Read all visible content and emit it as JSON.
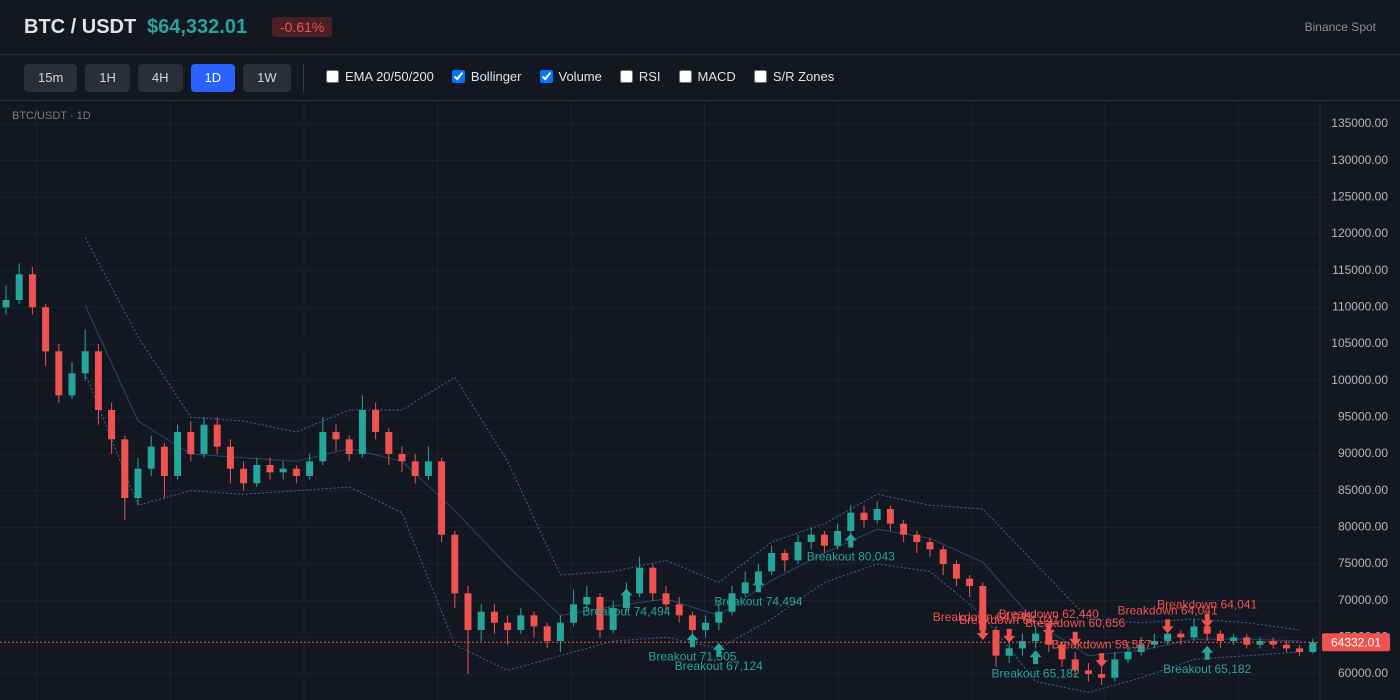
{
  "header": {
    "symbol": "BTC / USDT",
    "price": "$64,332.01",
    "change": "-0.61%",
    "exchange": "Binance Spot"
  },
  "toolbar": {
    "intervals": [
      "15m",
      "1H",
      "4H",
      "1D",
      "1W"
    ],
    "active_interval": 3,
    "indicators": [
      {
        "label": "EMA 20/50/200",
        "checked": false
      },
      {
        "label": "Bollinger",
        "checked": true
      },
      {
        "label": "Volume",
        "checked": true
      },
      {
        "label": "RSI",
        "checked": false
      },
      {
        "label": "MACD",
        "checked": false
      },
      {
        "label": "S/R Zones",
        "checked": false
      }
    ]
  },
  "chart_data": {
    "type": "candlestick",
    "label": "BTC/USDT · 1D",
    "up_color": "#26a69a",
    "down_color": "#ef5350",
    "grid": true,
    "ylim": [
      56460,
      138130
    ],
    "yticks": [
      {
        "value": 60000,
        "label": "60000.00"
      },
      {
        "value": 65000,
        "label": "65000.00"
      },
      {
        "value": 70000,
        "label": "70000.00"
      },
      {
        "value": 75000,
        "label": "75000.00"
      },
      {
        "value": 80000,
        "label": "80000.00"
      },
      {
        "value": 85000,
        "label": "85000.00"
      },
      {
        "value": 90000,
        "label": "90000.00"
      },
      {
        "value": 95000,
        "label": "95000.00"
      },
      {
        "value": 100000,
        "label": "100000.00"
      },
      {
        "value": 105000,
        "label": "105000.00"
      },
      {
        "value": 110000,
        "label": "110000.00"
      },
      {
        "value": 115000,
        "label": "115000.00"
      },
      {
        "value": 120000,
        "label": "120000.00"
      },
      {
        "value": 125000,
        "label": "125000.00"
      },
      {
        "value": 130000,
        "label": "130000.00"
      },
      {
        "value": 135000,
        "label": "135000.00"
      }
    ],
    "last_price": 64332.01,
    "open": [
      110000,
      111000,
      114500,
      110000,
      104000,
      98000,
      101000,
      104000,
      96000,
      92000,
      84000,
      88000,
      91000,
      87000,
      93000,
      90000,
      94000,
      91000,
      88000,
      86000,
      88500,
      87500,
      88000,
      87000,
      89000,
      93000,
      92000,
      90000,
      96000,
      93000,
      90000,
      89000,
      87000,
      89000,
      79000,
      71000,
      66000,
      68500,
      67000,
      66000,
      68000,
      66500,
      64500,
      67000,
      69500,
      70500,
      66000,
      69000,
      71000,
      74500,
      71000,
      69500,
      68000,
      66000,
      67000,
      68500,
      71000,
      72500,
      74000,
      76500,
      75500,
      78000,
      79000,
      77500,
      79500,
      82000,
      81000,
      82500,
      80500,
      79000,
      78000,
      77000,
      75000,
      73000,
      72000,
      66000,
      62500,
      63500,
      64500,
      65500,
      64000,
      62000,
      60500,
      60000,
      59500,
      62000,
      63000,
      64000,
      64500,
      65500,
      65000,
      66500,
      65500,
      64500,
      65000,
      64000,
      64500,
      64000,
      63500,
      63000
    ],
    "high": [
      113000,
      116000,
      115500,
      110500,
      105000,
      102500,
      107000,
      105000,
      97000,
      92500,
      89500,
      92500,
      91500,
      94000,
      94500,
      95000,
      95000,
      92000,
      89000,
      89500,
      89500,
      89000,
      88500,
      90000,
      95000,
      94000,
      92500,
      98000,
      97000,
      93500,
      91000,
      90000,
      91000,
      89500,
      79500,
      72000,
      69500,
      69500,
      68000,
      69000,
      68500,
      67000,
      68000,
      71500,
      72000,
      71000,
      70000,
      72500,
      76000,
      75000,
      72000,
      70500,
      68500,
      68000,
      70000,
      72000,
      74000,
      75000,
      77500,
      77000,
      79000,
      80000,
      79500,
      80500,
      83000,
      83000,
      83500,
      83000,
      81000,
      79500,
      78500,
      77500,
      75500,
      73500,
      72500,
      66500,
      65000,
      65500,
      66500,
      66000,
      64500,
      63000,
      61500,
      61000,
      63000,
      64000,
      65000,
      65500,
      66500,
      66000,
      67500,
      67000,
      66000,
      65500,
      65500,
      65000,
      65000,
      64500,
      64000,
      64800
    ],
    "low": [
      109000,
      110500,
      109000,
      102000,
      97000,
      97500,
      100000,
      94000,
      90000,
      81000,
      83000,
      87000,
      84000,
      86500,
      89000,
      89500,
      90000,
      86000,
      85000,
      85500,
      86500,
      86500,
      86000,
      86500,
      88500,
      90500,
      89000,
      89500,
      92000,
      88500,
      87500,
      86000,
      86500,
      78000,
      69000,
      60000,
      64500,
      65500,
      64000,
      65500,
      65000,
      63500,
      63000,
      66500,
      68500,
      65000,
      65500,
      68500,
      70500,
      70000,
      68500,
      67000,
      64500,
      65000,
      66000,
      68000,
      70500,
      71500,
      73500,
      74000,
      75000,
      77000,
      76500,
      77000,
      79000,
      80000,
      80500,
      79500,
      78000,
      76500,
      76000,
      73500,
      72000,
      70500,
      65000,
      61000,
      61500,
      62500,
      63500,
      63000,
      61000,
      59500,
      59000,
      58500,
      59000,
      61500,
      62500,
      63500,
      64000,
      64000,
      64500,
      64500,
      63500,
      64000,
      63500,
      63500,
      63500,
      63000,
      62500,
      62800
    ],
    "close": [
      111000,
      114500,
      110000,
      104000,
      98000,
      101000,
      104000,
      96000,
      92000,
      84000,
      88000,
      91000,
      87000,
      93000,
      90000,
      94000,
      91000,
      88000,
      86000,
      88500,
      87500,
      88000,
      87000,
      89000,
      93000,
      92000,
      90000,
      96000,
      93000,
      90000,
      89000,
      87000,
      89000,
      79000,
      71000,
      66000,
      68500,
      67000,
      66000,
      68000,
      66500,
      64500,
      67000,
      69500,
      70500,
      66000,
      69000,
      71000,
      74500,
      71000,
      69500,
      68000,
      66000,
      67000,
      68500,
      71000,
      72500,
      74000,
      76500,
      75500,
      78000,
      79000,
      77500,
      79500,
      82000,
      81000,
      82500,
      80500,
      79000,
      78000,
      77000,
      75000,
      73000,
      72000,
      66000,
      62500,
      63500,
      64500,
      65500,
      64000,
      62000,
      60500,
      60000,
      59500,
      62000,
      63000,
      64000,
      64500,
      65500,
      65000,
      66500,
      65500,
      64500,
      65000,
      64000,
      64500,
      64000,
      63500,
      63000,
      64332.01
    ],
    "bollinger": {
      "color": "#3a6ea5",
      "x": [
        6,
        10,
        14,
        18,
        22,
        26,
        30,
        34,
        38,
        42,
        46,
        50,
        54,
        58,
        62,
        66,
        70,
        74,
        78,
        82,
        86,
        90,
        94,
        98
      ],
      "upper": [
        119500,
        106000,
        95000,
        94500,
        93000,
        96000,
        96000,
        100500,
        89000,
        73500,
        74000,
        75500,
        72500,
        78000,
        80500,
        84500,
        83000,
        82500,
        75000,
        67500,
        67000,
        67500,
        67000,
        66000
      ],
      "middle": [
        110250,
        94500,
        90000,
        89500,
        89000,
        90750,
        89000,
        82250,
        74750,
        68000,
        69250,
        70250,
        68000,
        72750,
        76500,
        79750,
        78500,
        75250,
        67000,
        62500,
        63250,
        64750,
        64750,
        64500
      ],
      "lower": [
        101000,
        83000,
        85000,
        84500,
        85000,
        85500,
        82000,
        64000,
        60500,
        62500,
        64500,
        65000,
        63500,
        67500,
        72500,
        75000,
        74000,
        68000,
        59000,
        57500,
        59500,
        62000,
        62500,
        63000
      ]
    },
    "annotations": [
      {
        "text": "Breakout 74,494",
        "index": 47,
        "price": 70700,
        "direction": "up"
      },
      {
        "text": "Breakout 71,505",
        "index": 52,
        "price": 64600,
        "direction": "up"
      },
      {
        "text": "Breakout 67,124",
        "index": 54,
        "price": 63300,
        "direction": "up"
      },
      {
        "text": "Breakout 74,494",
        "index": 57,
        "price": 72100,
        "direction": "up"
      },
      {
        "text": "Breakout 80,043",
        "index": 64,
        "price": 78200,
        "direction": "up"
      },
      {
        "text": "Breakout 65,182",
        "index": 78,
        "price": 62300,
        "direction": "up"
      },
      {
        "text": "Breakout 65,182",
        "index": 91,
        "price": 62900,
        "direction": "up"
      },
      {
        "text": "Breakdown 64,041",
        "index": 74,
        "price": 65600,
        "direction": "down"
      },
      {
        "text": "Breakdown 64,041",
        "index": 76,
        "price": 65200,
        "direction": "down"
      },
      {
        "text": "Breakdown 62,440",
        "index": 79,
        "price": 66000,
        "direction": "down"
      },
      {
        "text": "Breakdown 60,656",
        "index": 81,
        "price": 64800,
        "direction": "down"
      },
      {
        "text": "Breakdown 59,557",
        "index": 83,
        "price": 61900,
        "direction": "down"
      },
      {
        "text": "Breakdown 64,041",
        "index": 88,
        "price": 66500,
        "direction": "down"
      },
      {
        "text": "Breakdown 64,041",
        "index": 91,
        "price": 67300,
        "direction": "down"
      }
    ]
  }
}
